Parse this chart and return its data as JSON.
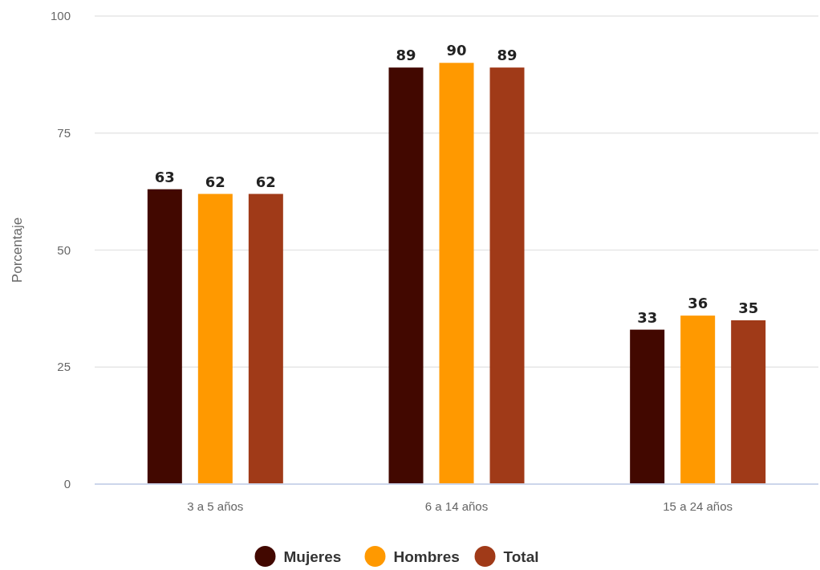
{
  "chart_data": {
    "type": "bar",
    "ylabel": "Porcentaje",
    "categories": [
      "3 a 5 años",
      "6 a 14 años",
      "15 a 24 años"
    ],
    "series": [
      {
        "name": "Mujeres",
        "color": "#420800",
        "values": [
          63,
          89,
          33
        ]
      },
      {
        "name": "Hombres",
        "color": "#ff9900",
        "values": [
          62,
          90,
          36
        ]
      },
      {
        "name": "Total",
        "color": "#a03a18",
        "values": [
          62,
          89,
          35
        ]
      }
    ],
    "ylim": [
      0,
      100
    ],
    "yticks": [
      0,
      25,
      50,
      75,
      100
    ],
    "grid": "y",
    "legend": "bottom",
    "data_labels": true
  }
}
